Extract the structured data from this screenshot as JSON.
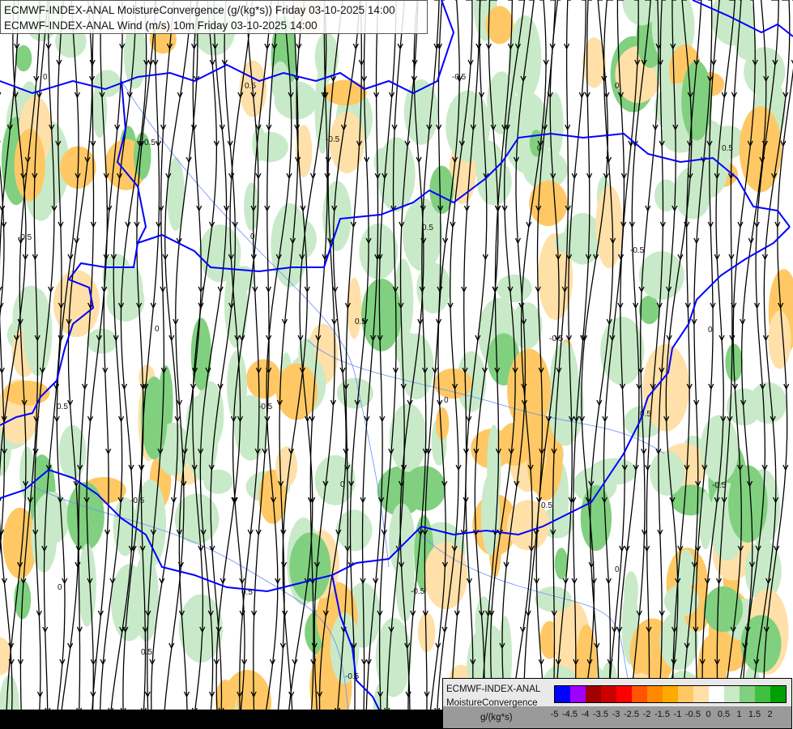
{
  "titles": {
    "line1": "ECMWF-INDEX-ANAL MoistureConvergence (g/(kg*s)) Friday 03-10-2025 14:00",
    "line2": "ECMWF-INDEX-ANAL Wind (m/s) 10m Friday 03-10-2025 14:00"
  },
  "legend": {
    "line1": "ECMWF-INDEX-ANAL",
    "line2": "MoistureConvergence",
    "unit": "g/(kg*s)",
    "colors": [
      "#0000ff",
      "#a000ff",
      "#a00000",
      "#cc0000",
      "#ff0000",
      "#ff5500",
      "#ff8800",
      "#ffaa00",
      "#ffc864",
      "#ffe0a8",
      "#ffffff",
      "#c8eac8",
      "#80d080",
      "#40c040",
      "#00a000"
    ],
    "ticks": [
      "-5",
      "-4.5",
      "-4",
      "-3.5",
      "-3",
      "-2.5",
      "-2",
      "-1.5",
      "-1",
      "-0.5",
      "0",
      "0.5",
      "1",
      "1.5",
      "2"
    ]
  },
  "contour_labels": [
    "0",
    "0.5",
    "-0.5"
  ],
  "colors": {
    "border": "#0000ff",
    "river": "#6a8cff",
    "streamline": "#000000"
  }
}
